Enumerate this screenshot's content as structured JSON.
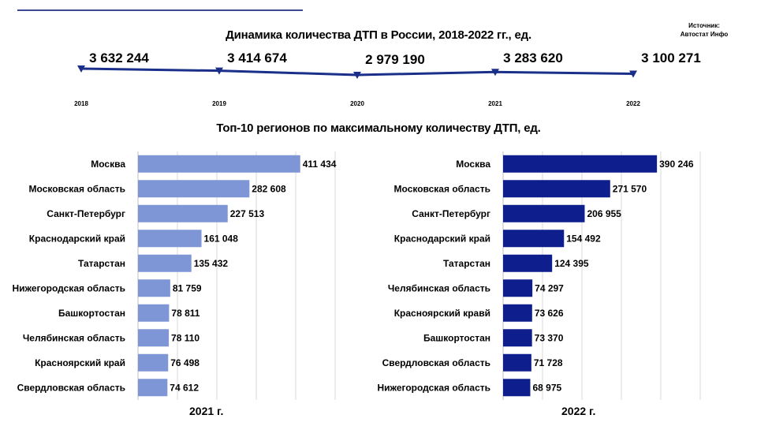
{
  "source": {
    "line1": "Источник:",
    "line2": "Автостат Инфо"
  },
  "colors": {
    "line": "#1a2f8a",
    "bars_2021": "#7f96d6",
    "bars_2022": "#0e1e8c",
    "rule": "#3b4a92"
  },
  "chart_data": [
    {
      "type": "line",
      "title": "Динамика количества ДТП в России, 2018-2022 гг., ед.",
      "x": [
        "2018",
        "2019",
        "2020",
        "2021",
        "2022"
      ],
      "series": [
        {
          "values": [
            3632244,
            3414674,
            2979190,
            3283620,
            3100271
          ],
          "labels": [
            "3 632 244",
            "3 414 674",
            "2 979 190",
            "3 283 620",
            "3 100 271"
          ]
        }
      ]
    },
    {
      "type": "bar",
      "orientation": "horizontal",
      "title": "Топ-10 регионов по максимальному количеству ДТП, ед.",
      "panel_label": "2021 г.",
      "categories": [
        "Москва",
        "Московская область",
        "Санкт-Петербург",
        "Краснодарский край",
        "Татарстан",
        "Нижегородская область",
        "Башкортостан",
        "Челябинская область",
        "Красноярский край",
        "Свердловская область"
      ],
      "values": [
        411434,
        282608,
        227513,
        161048,
        135432,
        81759,
        78811,
        78110,
        76498,
        74612
      ],
      "labels": [
        "411 434",
        "282 608",
        "227 513",
        "161 048",
        "135 432",
        "81 759",
        "78 811",
        "78 110",
        "76 498",
        "74 612"
      ],
      "xlim": [
        0,
        500000
      ]
    },
    {
      "type": "bar",
      "orientation": "horizontal",
      "panel_label": "2022 г.",
      "categories": [
        "Москва",
        "Московская область",
        "Санкт-Петербург",
        "Краснодарский край",
        "Татарстан",
        "Челябинская область",
        "Красноярский кравй",
        "Башкортостан",
        "Свердловская область",
        "Нижегородская область"
      ],
      "values": [
        390246,
        271570,
        206955,
        154492,
        124395,
        74297,
        73626,
        73370,
        71728,
        68975
      ],
      "labels": [
        "390 246",
        "271 570",
        "206 955",
        "154 492",
        "124 395",
        "74 297",
        "73 626",
        "73 370",
        "71 728",
        "68 975"
      ],
      "xlim": [
        0,
        500000
      ]
    }
  ]
}
